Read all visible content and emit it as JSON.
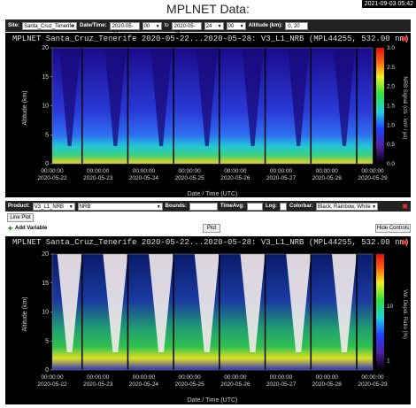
{
  "page": {
    "title": "MPLNET Data:",
    "timestamp": "2021-09-03 05:42"
  },
  "controls": {
    "site_label": "Site:",
    "site_value": "Santa_Cruz_Tenerife",
    "datetime_label": "Date/Time:",
    "date_from": "2020-05-22",
    "hour_from": "00",
    "date_to": "2020-05-28",
    "hour_to": "24",
    "minute_to": "00",
    "to_label": "to",
    "altitude_label": "Altitude (km):",
    "altitude_value": "0, 20"
  },
  "plot1": {
    "title": "MPLNET Santa_Cruz_Tenerife 2020-05-22...2020-05-28: V3_L1_NRB (MPL44255, 532.00 nm)",
    "ylabel": "Altitude (km)",
    "xlabel": "Date / Time (UTC)",
    "yticks": [
      "20",
      "15",
      "10",
      "5",
      "0"
    ],
    "xtick_time": "00:00:00",
    "xtick_dates": [
      "2020-05-22",
      "2020-05-23",
      "2020-05-24",
      "2020-05-25",
      "2020-05-26",
      "2020-05-27",
      "2020-05-28",
      "2020-05-29"
    ],
    "colorbar_label": "NRB Signal (cts · km² / µs)",
    "colorbar_ticks": [
      "3.0",
      "2.5",
      "2.0",
      "1.5",
      "1.0",
      "0.5",
      "0.0"
    ]
  },
  "variable_bar": {
    "product_label": "Product:",
    "product_value": "V3_L1_NRB",
    "var_value": "NRB",
    "bounds_label": "Bounds:",
    "timeavg_label": "TimeAvg:",
    "log_label": "Log:",
    "colorbar_label": "Colorbar:",
    "colorbar_value": "Black, Rainbow, White"
  },
  "buttons": {
    "line_plot": "Line Plot",
    "add_variable": "Add Variable",
    "plot": "Plot",
    "hide_controls": "Hide Controls"
  },
  "plot2": {
    "title": "MPLNET Santa_Cruz_Tenerife 2020-05-22...2020-05-28: V3_L1_NRB (MPL44255, 532.00 nm)",
    "ylabel": "Altitude (km)",
    "xlabel": "Date / Time (UTC)",
    "yticks": [
      "20",
      "15",
      "10",
      "5",
      "0"
    ],
    "xtick_time": "00:00:00",
    "xtick_dates": [
      "2020-05-22",
      "2020-05-23",
      "2020-05-24",
      "2020-05-25",
      "2020-05-26",
      "2020-05-27",
      "2020-05-28",
      "2020-05-29"
    ],
    "colorbar_label": "Vol. Depol. Ratio (%)",
    "colorbar_ticks": [
      "10",
      "1"
    ]
  },
  "colors": {
    "accent_close": "#e33333",
    "panel_bg": "#000000"
  }
}
